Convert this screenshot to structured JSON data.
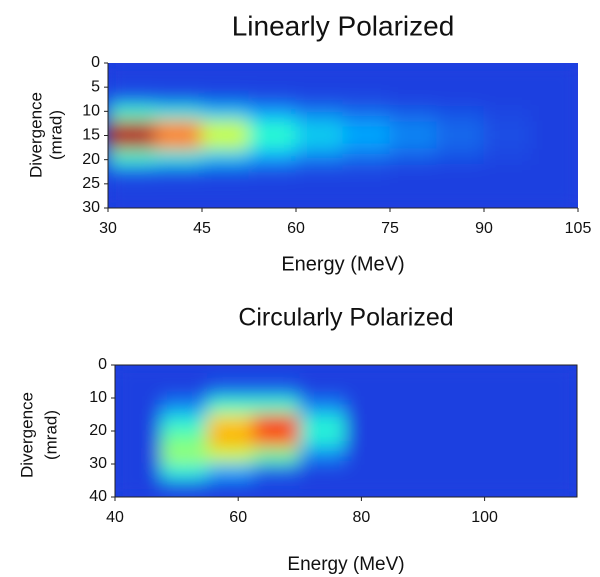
{
  "chart_data": [
    {
      "type": "heatmap",
      "title": "Linearly Polarized",
      "xlabel": "Energy (MeV)",
      "ylabel": [
        "Divergence",
        "(mrad)"
      ],
      "xlim": [
        30,
        105
      ],
      "ylim": [
        0,
        30
      ],
      "y_reversed": true,
      "xticks": [
        30,
        45,
        60,
        75,
        90,
        105
      ],
      "yticks": [
        0,
        5,
        10,
        15,
        20,
        25,
        30
      ],
      "colors": [
        "#1f3fe0",
        "#00b0ff",
        "#30ffd0",
        "#c8ff40",
        "#ffc800",
        "#ff3c00",
        "#b80000"
      ],
      "z": [
        [
          0,
          0,
          0,
          0,
          0,
          0,
          0,
          0,
          0,
          0
        ],
        [
          0,
          0,
          0,
          0,
          0,
          0,
          0,
          0,
          0,
          0
        ],
        [
          0.05,
          0.04,
          0.03,
          0.02,
          0.01,
          0.01,
          0,
          0,
          0,
          0
        ],
        [
          0.35,
          0.3,
          0.22,
          0.15,
          0.1,
          0.07,
          0.05,
          0.03,
          0.01,
          0
        ],
        [
          1.0,
          0.75,
          0.5,
          0.32,
          0.22,
          0.15,
          0.1,
          0.06,
          0.02,
          0
        ],
        [
          1.0,
          0.75,
          0.5,
          0.32,
          0.22,
          0.15,
          0.1,
          0.06,
          0.02,
          0
        ],
        [
          0.35,
          0.3,
          0.22,
          0.15,
          0.1,
          0.07,
          0.05,
          0.03,
          0.01,
          0
        ],
        [
          0.05,
          0.04,
          0.03,
          0.02,
          0.01,
          0.01,
          0,
          0,
          0,
          0
        ],
        [
          0,
          0,
          0,
          0,
          0,
          0,
          0,
          0,
          0,
          0
        ],
        [
          0,
          0,
          0,
          0,
          0,
          0,
          0,
          0,
          0,
          0
        ]
      ]
    },
    {
      "type": "heatmap",
      "title": "Circularly Polarized",
      "xlabel": "Energy (MeV)",
      "ylabel": [
        "Divergence",
        "(mrad)"
      ],
      "xlim": [
        40,
        115
      ],
      "ylim": [
        0,
        40
      ],
      "y_reversed": true,
      "frame": true,
      "xticks": [
        40,
        60,
        80,
        100
      ],
      "yticks": [
        0,
        10,
        20,
        30,
        40
      ],
      "colors": [
        "#1f3fe0",
        "#00b0ff",
        "#30ffd0",
        "#c8ff40",
        "#ffc800",
        "#ff3c00",
        "#b80000"
      ],
      "z": [
        [
          0,
          0,
          0,
          0,
          0,
          0,
          0,
          0,
          0,
          0
        ],
        [
          0,
          0,
          0.05,
          0.05,
          0,
          0,
          0,
          0,
          0,
          0
        ],
        [
          0,
          0.1,
          0.35,
          0.35,
          0.1,
          0,
          0,
          0,
          0,
          0
        ],
        [
          0,
          0.3,
          0.65,
          0.85,
          0.3,
          0,
          0,
          0,
          0,
          0
        ],
        [
          0,
          0.4,
          0.7,
          0.8,
          0.3,
          0,
          0,
          0,
          0,
          0
        ],
        [
          0,
          0.45,
          0.5,
          0.4,
          0.1,
          0,
          0,
          0,
          0,
          0
        ],
        [
          0,
          0.3,
          0.15,
          0.05,
          0,
          0,
          0,
          0,
          0,
          0
        ],
        [
          0,
          0.02,
          0,
          0,
          0,
          0,
          0,
          0,
          0,
          0
        ]
      ]
    }
  ]
}
